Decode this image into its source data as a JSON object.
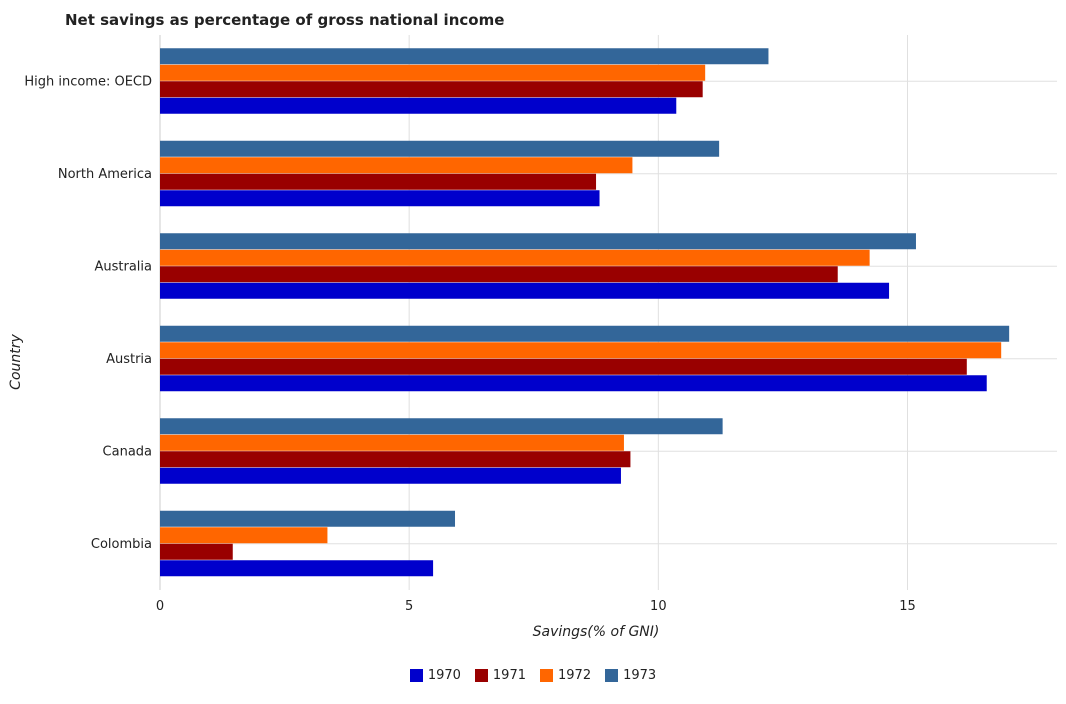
{
  "chart_data": {
    "type": "bar",
    "orientation": "horizontal",
    "title": "Net savings as percentage of gross national income",
    "xlabel": "Savings(% of GNI)",
    "ylabel": "Country",
    "xlim": [
      0,
      18
    ],
    "xticks": [
      "0",
      "5",
      "10",
      "15"
    ],
    "grid": true,
    "legend_position": "bottom",
    "categories": [
      "High income: OECD",
      "North America",
      "Australia",
      "Austria",
      "Canada",
      "Colombia"
    ],
    "series": [
      {
        "name": "1970",
        "color": "#0000cc",
        "values": [
          10.36,
          8.82,
          14.63,
          16.59,
          9.25,
          5.48
        ]
      },
      {
        "name": "1971",
        "color": "#990000",
        "values": [
          10.89,
          8.75,
          13.6,
          16.19,
          9.44,
          1.46
        ]
      },
      {
        "name": "1972",
        "color": "#ff6600",
        "values": [
          10.94,
          9.48,
          14.24,
          16.88,
          9.31,
          3.36
        ]
      },
      {
        "name": "1973",
        "color": "#336699",
        "values": [
          12.21,
          11.22,
          15.17,
          17.04,
          11.29,
          5.92
        ]
      }
    ]
  }
}
